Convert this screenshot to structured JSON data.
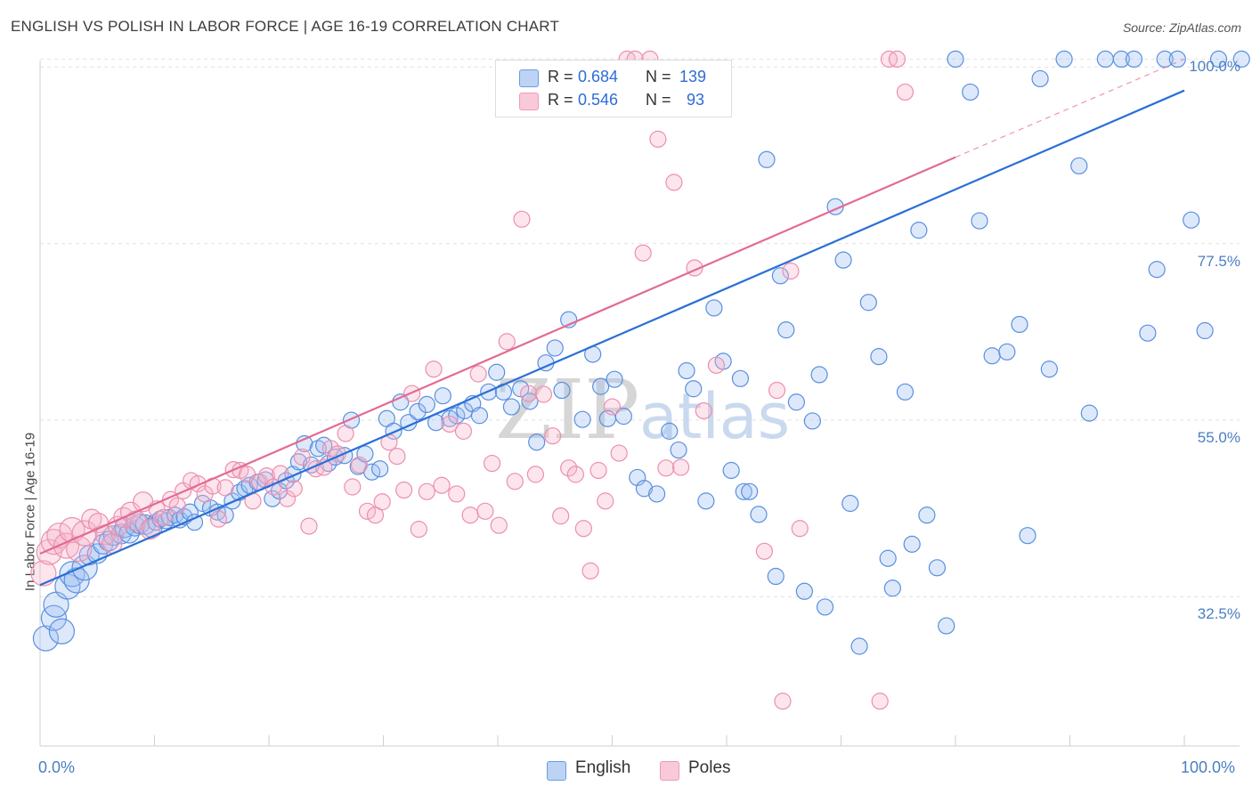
{
  "title": "ENGLISH VS POLISH IN LABOR FORCE | AGE 16-19 CORRELATION CHART",
  "source": "Source: ZipAtlas.com",
  "watermark": {
    "zip": "ZIP",
    "atlas": "atlas"
  },
  "colors": {
    "english": "#6b9bea",
    "english_line": "#2a6fd6",
    "poles": "#f09bb6",
    "poles_line": "#e26b92",
    "accent_text": "#2f6bd8"
  },
  "legend_top": [
    {
      "r_label": "R =",
      "r_value": "0.684",
      "n_label": "N =",
      "n_value": "139"
    },
    {
      "r_label": "R =",
      "r_value": "0.546",
      "n_label": "N =",
      "n_value": "93"
    }
  ],
  "legend_bottom": [
    "English",
    "Poles"
  ],
  "chart_data": {
    "type": "scatter",
    "title": "ENGLISH VS POLISH IN LABOR FORCE | AGE 16-19 CORRELATION CHART",
    "xlabel": "",
    "ylabel": "In Labor Force | Age 16-19",
    "xlim": [
      0,
      100
    ],
    "ylim": [
      13.5,
      101.5
    ],
    "x_tick_labels": [
      "0.0%",
      "100.0%"
    ],
    "y_ticks": [
      32.5,
      55.0,
      77.5,
      100.0
    ],
    "y_tick_labels": [
      "32.5%",
      "55.0%",
      "77.5%",
      "100.0%"
    ],
    "grid": true,
    "legend_position": "top-center",
    "series": [
      {
        "name": "English",
        "r": 0.684,
        "n": 139,
        "trend": {
          "x0": 0,
          "y0": 34.0,
          "x1": 100,
          "y1": 97.0
        },
        "points": [
          [
            0.5,
            27.2
          ],
          [
            1.2,
            29.8
          ],
          [
            1.4,
            31.5
          ],
          [
            1.9,
            28.1
          ],
          [
            2.4,
            33.8
          ],
          [
            2.8,
            35.4
          ],
          [
            3.2,
            34.6
          ],
          [
            3.9,
            36.2
          ],
          [
            4.3,
            37.8
          ],
          [
            5.0,
            38.0
          ],
          [
            5.5,
            39.2
          ],
          [
            6.0,
            39.6
          ],
          [
            6.4,
            40.3
          ],
          [
            7.1,
            40.5
          ],
          [
            7.4,
            41.3
          ],
          [
            7.8,
            40.6
          ],
          [
            8.3,
            41.5
          ],
          [
            8.7,
            41.8
          ],
          [
            9.2,
            41.7
          ],
          [
            9.8,
            41.3
          ],
          [
            10.1,
            42.0
          ],
          [
            10.5,
            42.4
          ],
          [
            11.0,
            42.2
          ],
          [
            11.3,
            42.6
          ],
          [
            11.8,
            42.9
          ],
          [
            12.2,
            42.3
          ],
          [
            12.6,
            42.7
          ],
          [
            13.1,
            43.3
          ],
          [
            13.5,
            42.0
          ],
          [
            14.2,
            44.4
          ],
          [
            14.9,
            43.8
          ],
          [
            15.5,
            43.3
          ],
          [
            16.2,
            42.9
          ],
          [
            16.8,
            44.7
          ],
          [
            17.4,
            45.8
          ],
          [
            17.9,
            46.3
          ],
          [
            18.3,
            46.7
          ],
          [
            19.0,
            47.1
          ],
          [
            19.7,
            47.4
          ],
          [
            20.3,
            45.0
          ],
          [
            20.9,
            46.0
          ],
          [
            21.5,
            47.3
          ],
          [
            22.1,
            48.1
          ],
          [
            22.6,
            49.7
          ],
          [
            23.1,
            52.0
          ],
          [
            23.7,
            49.3
          ],
          [
            24.3,
            51.4
          ],
          [
            24.8,
            51.8
          ],
          [
            25.2,
            49.5
          ],
          [
            25.8,
            50.3
          ],
          [
            26.6,
            50.5
          ],
          [
            27.2,
            55.0
          ],
          [
            27.8,
            49.1
          ],
          [
            28.4,
            50.7
          ],
          [
            29.0,
            48.4
          ],
          [
            29.7,
            48.8
          ],
          [
            30.3,
            55.2
          ],
          [
            30.9,
            53.6
          ],
          [
            31.5,
            57.3
          ],
          [
            32.2,
            54.7
          ],
          [
            33.0,
            56.1
          ],
          [
            33.8,
            57.0
          ],
          [
            34.6,
            54.7
          ],
          [
            35.2,
            58.1
          ],
          [
            35.8,
            55.2
          ],
          [
            36.4,
            55.6
          ],
          [
            37.1,
            56.2
          ],
          [
            37.8,
            57.1
          ],
          [
            38.4,
            55.6
          ],
          [
            39.2,
            58.6
          ],
          [
            39.9,
            61.1
          ],
          [
            40.5,
            58.6
          ],
          [
            41.2,
            56.7
          ],
          [
            42.0,
            59.0
          ],
          [
            42.8,
            57.4
          ],
          [
            43.4,
            52.2
          ],
          [
            44.2,
            62.3
          ],
          [
            45.0,
            64.2
          ],
          [
            45.6,
            58.8
          ],
          [
            46.2,
            67.8
          ],
          [
            47.4,
            55.1
          ],
          [
            48.3,
            63.4
          ],
          [
            49.0,
            59.3
          ],
          [
            49.6,
            55.2
          ],
          [
            50.2,
            60.2
          ],
          [
            51.0,
            55.5
          ],
          [
            52.2,
            47.7
          ],
          [
            52.8,
            46.3
          ],
          [
            53.9,
            45.6
          ],
          [
            55.0,
            53.6
          ],
          [
            55.8,
            51.2
          ],
          [
            56.5,
            61.3
          ],
          [
            57.1,
            59.0
          ],
          [
            58.2,
            44.7
          ],
          [
            58.9,
            69.3
          ],
          [
            59.7,
            62.5
          ],
          [
            60.4,
            48.6
          ],
          [
            61.2,
            60.3
          ],
          [
            61.5,
            45.9
          ],
          [
            62.0,
            45.9
          ],
          [
            62.8,
            43.0
          ],
          [
            63.5,
            88.2
          ],
          [
            64.3,
            35.1
          ],
          [
            64.7,
            73.4
          ],
          [
            65.2,
            66.5
          ],
          [
            66.1,
            57.3
          ],
          [
            66.8,
            33.2
          ],
          [
            67.5,
            54.9
          ],
          [
            68.1,
            60.8
          ],
          [
            68.6,
            31.2
          ],
          [
            69.5,
            82.2
          ],
          [
            70.2,
            75.4
          ],
          [
            70.8,
            44.4
          ],
          [
            71.6,
            26.2
          ],
          [
            72.4,
            70.0
          ],
          [
            73.3,
            63.1
          ],
          [
            74.1,
            37.4
          ],
          [
            74.5,
            33.6
          ],
          [
            75.6,
            58.6
          ],
          [
            76.2,
            39.2
          ],
          [
            76.8,
            79.2
          ],
          [
            77.5,
            42.9
          ],
          [
            78.4,
            36.2
          ],
          [
            79.2,
            28.8
          ],
          [
            80.0,
            101.0
          ],
          [
            81.3,
            96.8
          ],
          [
            82.1,
            80.4
          ],
          [
            83.2,
            63.2
          ],
          [
            84.5,
            63.7
          ],
          [
            85.6,
            67.2
          ],
          [
            86.3,
            40.3
          ],
          [
            87.4,
            98.5
          ],
          [
            88.2,
            61.5
          ],
          [
            89.5,
            101.0
          ],
          [
            90.8,
            87.4
          ],
          [
            91.7,
            55.9
          ],
          [
            93.1,
            101.0
          ],
          [
            94.5,
            101.0
          ],
          [
            95.6,
            101.0
          ],
          [
            96.8,
            66.1
          ],
          [
            97.6,
            74.2
          ],
          [
            98.3,
            101.0
          ],
          [
            99.4,
            101.0
          ],
          [
            100.6,
            80.5
          ],
          [
            101.8,
            66.4
          ],
          [
            103.0,
            101.0
          ],
          [
            105.0,
            101.0
          ]
        ]
      },
      {
        "name": "Poles",
        "r": 0.546,
        "n": 93,
        "trend": {
          "x0": 0,
          "y0": 38.0,
          "x1": 80,
          "y1": 88.5,
          "dashed_to": {
            "x": 100,
            "y": 101.0
          }
        },
        "points": [
          [
            0.3,
            35.5
          ],
          [
            0.8,
            38.2
          ],
          [
            1.2,
            39.5
          ],
          [
            1.7,
            40.3
          ],
          [
            2.3,
            39.0
          ],
          [
            2.8,
            41.0
          ],
          [
            3.4,
            38.6
          ],
          [
            3.9,
            40.6
          ],
          [
            4.5,
            42.4
          ],
          [
            5.1,
            41.9
          ],
          [
            5.7,
            40.4
          ],
          [
            6.3,
            39.3
          ],
          [
            6.8,
            41.5
          ],
          [
            7.3,
            42.6
          ],
          [
            7.9,
            43.3
          ],
          [
            8.4,
            42.2
          ],
          [
            9.0,
            44.6
          ],
          [
            9.6,
            41.1
          ],
          [
            10.2,
            43.7
          ],
          [
            10.8,
            42.6
          ],
          [
            11.4,
            44.9
          ],
          [
            12.0,
            44.1
          ],
          [
            12.5,
            46.0
          ],
          [
            13.2,
            47.3
          ],
          [
            13.8,
            46.9
          ],
          [
            14.4,
            45.6
          ],
          [
            15.1,
            46.6
          ],
          [
            15.6,
            42.4
          ],
          [
            16.2,
            46.4
          ],
          [
            16.9,
            48.7
          ],
          [
            17.5,
            48.6
          ],
          [
            18.1,
            48.1
          ],
          [
            18.6,
            44.7
          ],
          [
            19.2,
            47.1
          ],
          [
            19.8,
            47.9
          ],
          [
            20.4,
            46.5
          ],
          [
            21.0,
            48.2
          ],
          [
            21.6,
            45.0
          ],
          [
            22.2,
            46.3
          ],
          [
            22.9,
            50.3
          ],
          [
            23.5,
            41.5
          ],
          [
            24.1,
            48.8
          ],
          [
            24.8,
            49.0
          ],
          [
            25.4,
            51.4
          ],
          [
            26.0,
            50.7
          ],
          [
            26.7,
            53.3
          ],
          [
            27.3,
            46.5
          ],
          [
            27.9,
            49.3
          ],
          [
            28.6,
            43.4
          ],
          [
            29.3,
            42.9
          ],
          [
            29.9,
            44.6
          ],
          [
            30.5,
            52.2
          ],
          [
            31.2,
            50.4
          ],
          [
            31.8,
            46.1
          ],
          [
            32.5,
            58.4
          ],
          [
            33.1,
            41.1
          ],
          [
            33.8,
            45.9
          ],
          [
            34.4,
            61.5
          ],
          [
            35.1,
            46.7
          ],
          [
            35.8,
            54.5
          ],
          [
            36.4,
            45.6
          ],
          [
            37.0,
            53.6
          ],
          [
            37.6,
            42.9
          ],
          [
            38.3,
            60.9
          ],
          [
            38.9,
            43.4
          ],
          [
            39.5,
            49.5
          ],
          [
            40.1,
            41.6
          ],
          [
            40.8,
            65.0
          ],
          [
            41.5,
            47.2
          ],
          [
            42.1,
            80.6
          ],
          [
            42.7,
            58.4
          ],
          [
            43.3,
            48.1
          ],
          [
            44.0,
            58.3
          ],
          [
            44.8,
            53.0
          ],
          [
            45.5,
            42.8
          ],
          [
            46.2,
            48.9
          ],
          [
            46.8,
            48.1
          ],
          [
            47.5,
            41.2
          ],
          [
            48.1,
            35.8
          ],
          [
            48.8,
            48.6
          ],
          [
            49.4,
            44.7
          ],
          [
            50.0,
            56.7
          ],
          [
            50.6,
            50.8
          ],
          [
            51.3,
            101.0
          ],
          [
            52.0,
            101.0
          ],
          [
            52.7,
            76.3
          ],
          [
            53.3,
            101.0
          ],
          [
            54.0,
            90.8
          ],
          [
            54.7,
            48.9
          ],
          [
            55.4,
            85.3
          ],
          [
            56.0,
            49.0
          ],
          [
            57.2,
            74.4
          ],
          [
            58.0,
            56.2
          ],
          [
            59.1,
            62.0
          ],
          [
            63.3,
            38.3
          ],
          [
            64.4,
            58.8
          ],
          [
            64.9,
            19.2
          ],
          [
            65.6,
            74.0
          ],
          [
            66.4,
            41.2
          ],
          [
            73.4,
            19.2
          ],
          [
            74.2,
            101.0
          ],
          [
            74.9,
            101.0
          ],
          [
            75.6,
            96.8
          ]
        ]
      }
    ]
  }
}
